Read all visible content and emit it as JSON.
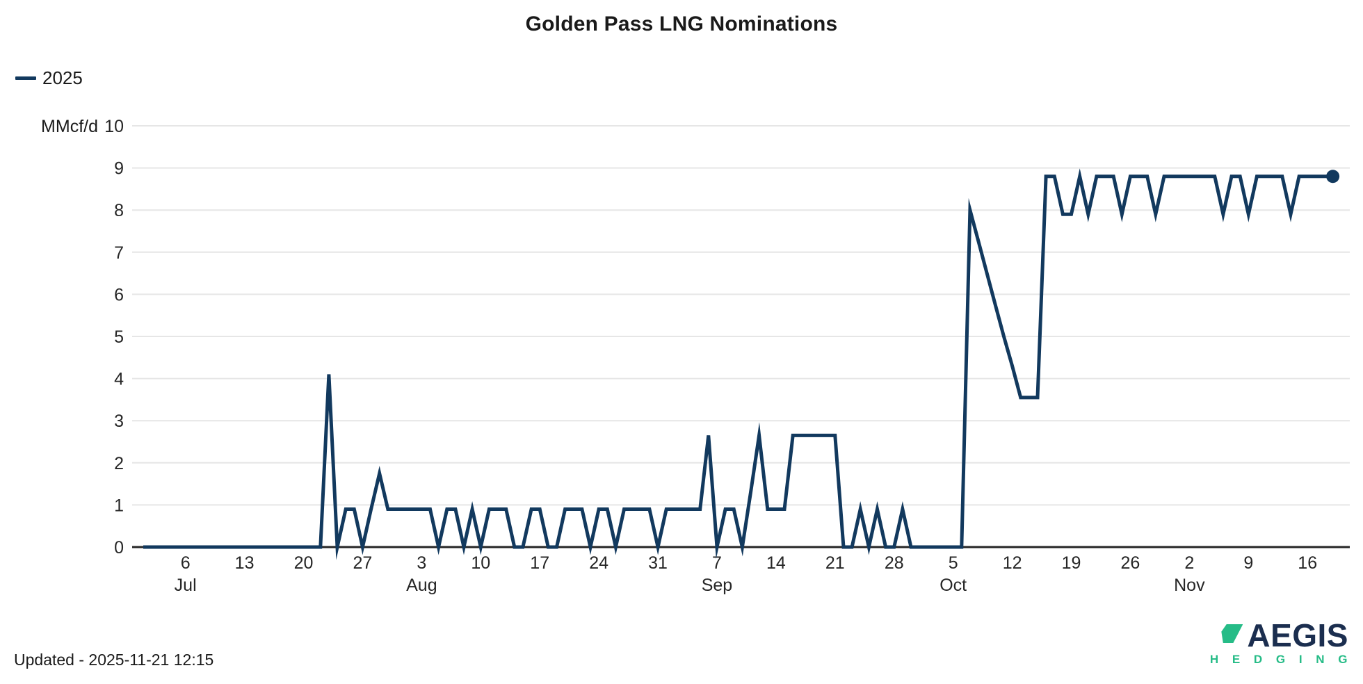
{
  "title": "Golden Pass LNG Nominations",
  "legend": {
    "series_label": "2025"
  },
  "y_axis": {
    "unit_label": "MMcf/d",
    "min": 0,
    "max": 10,
    "tick_step": 1
  },
  "footer": {
    "updated_text": "Updated - 2025-11-21 12:15"
  },
  "logo": {
    "name_text": "AEGIS",
    "sub_text": "H E D G I N G"
  },
  "colors": {
    "line": "#12395E",
    "grid": "#E6E6E6",
    "axis": "#262626",
    "tick_text": "#262626",
    "title_text": "#1A1A1A",
    "logo_navy": "#1B2E4F",
    "logo_green": "#26BC87"
  },
  "chart_data": {
    "type": "line",
    "title": "Golden Pass LNG Nominations",
    "ylabel": "MMcf/d",
    "ylim": [
      0,
      10
    ],
    "grid": "horizontal",
    "legend_position": "top-left",
    "series": [
      {
        "name": "2025",
        "start_date": "2025-07-01",
        "frequency": "daily",
        "end_marker": "dot",
        "values": [
          0,
          0,
          0,
          0,
          0,
          0,
          0,
          0,
          0,
          0,
          0,
          0,
          0,
          0,
          0,
          0,
          0,
          0,
          0,
          0,
          0,
          0,
          4.1,
          0,
          0.9,
          0.9,
          0,
          0.9,
          1.75,
          0.9,
          0.9,
          0.9,
          0.9,
          0.9,
          0.9,
          0,
          0.9,
          0.9,
          0,
          0.9,
          0,
          0.9,
          0.9,
          0.9,
          0,
          0,
          0.9,
          0.9,
          0,
          0,
          0.9,
          0.9,
          0.9,
          0,
          0.9,
          0.9,
          0,
          0.9,
          0.9,
          0.9,
          0.9,
          0,
          0.9,
          0.9,
          0.9,
          0.9,
          0.9,
          2.65,
          0,
          0.9,
          0.9,
          0,
          1.3,
          2.65,
          0.9,
          0.9,
          0.9,
          2.65,
          2.65,
          2.65,
          2.65,
          2.65,
          2.65,
          0,
          0,
          0.9,
          0,
          0.9,
          0,
          0,
          0.9,
          0,
          0,
          0,
          0,
          0,
          0,
          0,
          8,
          7.25,
          6.5,
          5.75,
          5,
          4.3,
          3.55,
          3.55,
          3.55,
          8.8,
          8.8,
          7.9,
          7.9,
          8.8,
          7.9,
          8.8,
          8.8,
          8.8,
          7.9,
          8.8,
          8.8,
          8.8,
          7.9,
          8.8,
          8.8,
          8.8,
          8.8,
          8.8,
          8.8,
          8.8,
          7.9,
          8.8,
          8.8,
          7.9,
          8.8,
          8.8,
          8.8,
          8.8,
          7.9,
          8.8,
          8.8,
          8.8,
          8.8,
          8.8
        ]
      }
    ],
    "x_ticks": [
      {
        "date": "2025-07-06",
        "label": "6",
        "month_label": "Jul"
      },
      {
        "date": "2025-07-13",
        "label": "13"
      },
      {
        "date": "2025-07-20",
        "label": "20"
      },
      {
        "date": "2025-07-27",
        "label": "27"
      },
      {
        "date": "2025-08-03",
        "label": "3",
        "month_label": "Aug"
      },
      {
        "date": "2025-08-10",
        "label": "10"
      },
      {
        "date": "2025-08-17",
        "label": "17"
      },
      {
        "date": "2025-08-24",
        "label": "24"
      },
      {
        "date": "2025-08-31",
        "label": "31"
      },
      {
        "date": "2025-09-07",
        "label": "7",
        "month_label": "Sep"
      },
      {
        "date": "2025-09-14",
        "label": "14"
      },
      {
        "date": "2025-09-21",
        "label": "21"
      },
      {
        "date": "2025-09-28",
        "label": "28"
      },
      {
        "date": "2025-10-05",
        "label": "5",
        "month_label": "Oct"
      },
      {
        "date": "2025-10-12",
        "label": "12"
      },
      {
        "date": "2025-10-19",
        "label": "19"
      },
      {
        "date": "2025-10-26",
        "label": "26"
      },
      {
        "date": "2025-11-02",
        "label": "2",
        "month_label": "Nov"
      },
      {
        "date": "2025-11-09",
        "label": "9"
      },
      {
        "date": "2025-11-16",
        "label": "16"
      }
    ]
  }
}
